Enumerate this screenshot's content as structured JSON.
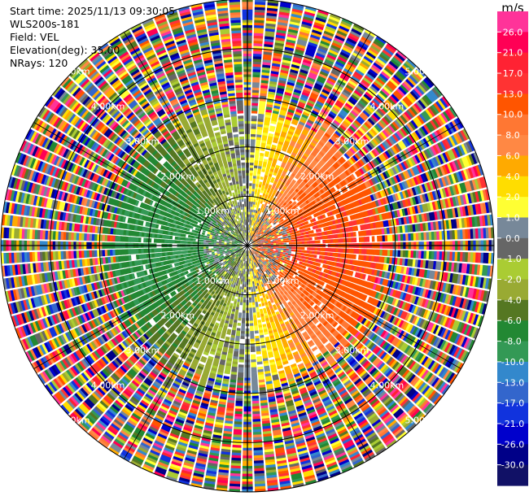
{
  "header": {
    "start_time": "Start time: 2025/11/13 09:30:05",
    "instrument": "WLS200s-181",
    "field": "Field: VEL",
    "elevation": "Elevation(deg): 35.00",
    "nrays": "NRays: 120"
  },
  "chart_data": {
    "type": "heatmap",
    "projection": "polar-ppi",
    "field": "VEL",
    "units": "m/s",
    "n_rays": 120,
    "elevation_deg": 35.0,
    "range_rings_km": [
      1.0,
      2.0,
      3.0,
      4.0,
      5.0
    ],
    "ring_labels": [
      "1.00km",
      "2.00km",
      "3.00km",
      "4.00km",
      "5.00km"
    ],
    "max_range_km": 5.0,
    "colorbar": {
      "label": "m/s",
      "levels": [
        -30,
        -26,
        -21,
        -17,
        -13,
        -10,
        -8,
        -6,
        -4,
        -2,
        -1,
        0,
        1,
        2,
        4,
        6,
        8,
        10,
        13,
        17,
        21,
        26
      ],
      "tick_labels": [
        "26.0",
        "21.0",
        "17.0",
        "13.0",
        "10.0",
        "8.0",
        "6.0",
        "4.0",
        "2.0",
        "1.0",
        "0.0",
        "-1.0",
        "-2.0",
        "-4.0",
        "-6.0",
        "-8.0",
        "-10.0",
        "-13.0",
        "-17.0",
        "-21.0",
        "-26.0",
        "-30.0"
      ],
      "colors_top_to_bottom": [
        "#ff3399",
        "#ff0055",
        "#ff2233",
        "#ff3333",
        "#ff5500",
        "#ff7733",
        "#ff8844",
        "#ffaa00",
        "#ffdd00",
        "#ffff33",
        "#778899",
        "#666666",
        "#aacc33",
        "#99aa33",
        "#557722",
        "#228833",
        "#339955",
        "#3388cc",
        "#3366cc",
        "#1133dd",
        "#0000cc",
        "#000088",
        "#111166"
      ]
    },
    "near_field_pattern": {
      "description_values": "velocity roughly -8 m/s toward west, +13 m/s toward east within ~2.7 km",
      "west_velocity": -8,
      "east_velocity": 13,
      "clean_range_km": 2.7
    }
  }
}
